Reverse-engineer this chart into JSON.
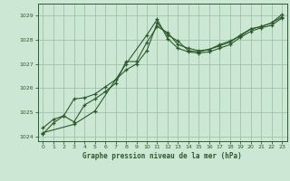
{
  "title": "Graphe pression niveau de la mer (hPa)",
  "background_color": "#cce8d4",
  "grid_color": "#9dc4a8",
  "line_color": "#2d5a2d",
  "xlim": [
    -0.5,
    23.5
  ],
  "ylim": [
    1023.8,
    1029.5
  ],
  "yticks": [
    1024,
    1025,
    1026,
    1027,
    1028,
    1029
  ],
  "xticks": [
    0,
    1,
    2,
    3,
    4,
    5,
    6,
    7,
    8,
    9,
    10,
    11,
    12,
    13,
    14,
    15,
    16,
    17,
    18,
    19,
    20,
    21,
    22,
    23
  ],
  "series1": {
    "x": [
      0,
      1,
      2,
      3,
      4,
      5,
      6,
      7,
      8,
      9,
      10,
      11,
      12,
      13,
      14,
      15,
      16,
      17,
      18,
      19,
      20,
      21,
      22,
      23
    ],
    "y": [
      1024.35,
      1024.7,
      1024.85,
      1024.6,
      1025.3,
      1025.55,
      1025.85,
      1026.2,
      1027.1,
      1027.1,
      1027.9,
      1028.55,
      1028.3,
      1027.8,
      1027.65,
      1027.55,
      1027.6,
      1027.75,
      1027.9,
      1028.2,
      1028.45,
      1028.55,
      1028.7,
      1029.05
    ]
  },
  "series2": {
    "x": [
      0,
      1,
      2,
      3,
      4,
      5,
      6,
      7,
      8,
      9,
      10,
      11,
      12,
      13,
      14,
      15,
      16,
      17,
      18,
      19,
      20,
      21,
      22,
      23
    ],
    "y": [
      1024.1,
      1024.55,
      1024.85,
      1025.55,
      1025.6,
      1025.75,
      1026.05,
      1026.35,
      1026.75,
      1027.0,
      1027.55,
      1028.7,
      1028.2,
      1027.95,
      1027.55,
      1027.5,
      1027.6,
      1027.8,
      1027.95,
      1028.15,
      1028.45,
      1028.55,
      1028.7,
      1028.95
    ]
  },
  "series3": {
    "x": [
      0,
      3,
      5,
      8,
      10,
      11,
      12,
      13,
      14,
      15,
      16,
      17,
      18,
      19,
      20,
      21,
      22,
      23
    ],
    "y": [
      1024.15,
      1024.5,
      1025.05,
      1027.0,
      1028.2,
      1028.85,
      1028.05,
      1027.65,
      1027.5,
      1027.45,
      1027.5,
      1027.65,
      1027.8,
      1028.1,
      1028.35,
      1028.5,
      1028.6,
      1028.9
    ]
  }
}
